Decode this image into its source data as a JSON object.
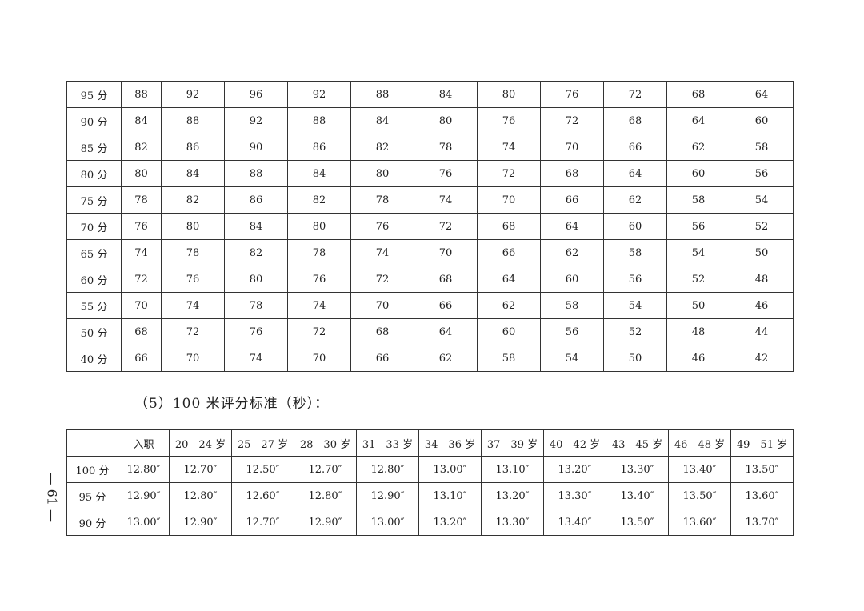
{
  "table1": {
    "rows": [
      [
        "95 分",
        "88",
        "92",
        "96",
        "92",
        "88",
        "84",
        "80",
        "76",
        "72",
        "68",
        "64"
      ],
      [
        "90 分",
        "84",
        "88",
        "92",
        "88",
        "84",
        "80",
        "76",
        "72",
        "68",
        "64",
        "60"
      ],
      [
        "85 分",
        "82",
        "86",
        "90",
        "86",
        "82",
        "78",
        "74",
        "70",
        "66",
        "62",
        "58"
      ],
      [
        "80 分",
        "80",
        "84",
        "88",
        "84",
        "80",
        "76",
        "72",
        "68",
        "64",
        "60",
        "56"
      ],
      [
        "75 分",
        "78",
        "82",
        "86",
        "82",
        "78",
        "74",
        "70",
        "66",
        "62",
        "58",
        "54"
      ],
      [
        "70 分",
        "76",
        "80",
        "84",
        "80",
        "76",
        "72",
        "68",
        "64",
        "60",
        "56",
        "52"
      ],
      [
        "65 分",
        "74",
        "78",
        "82",
        "78",
        "74",
        "70",
        "66",
        "62",
        "58",
        "54",
        "50"
      ],
      [
        "60 分",
        "72",
        "76",
        "80",
        "76",
        "72",
        "68",
        "64",
        "60",
        "56",
        "52",
        "48"
      ],
      [
        "55 分",
        "70",
        "74",
        "78",
        "74",
        "70",
        "66",
        "62",
        "58",
        "54",
        "50",
        "46"
      ],
      [
        "50 分",
        "68",
        "72",
        "76",
        "72",
        "68",
        "64",
        "60",
        "56",
        "52",
        "48",
        "44"
      ],
      [
        "40 分",
        "66",
        "70",
        "74",
        "70",
        "66",
        "62",
        "58",
        "54",
        "50",
        "46",
        "42"
      ]
    ]
  },
  "heading": "（5）100 米评分标准（秒）：",
  "table2": {
    "headers": [
      "",
      "入职",
      "20—24 岁",
      "25—27 岁",
      "28—30 岁",
      "31—33 岁",
      "34—36 岁",
      "37—39 岁",
      "40—42 岁",
      "43—45 岁",
      "46—48 岁",
      "49—51 岁"
    ],
    "rows": [
      [
        "100 分",
        "12.80″",
        "12.70″",
        "12.50″",
        "12.70″",
        "12.80″",
        "13.00″",
        "13.10″",
        "13.20″",
        "13.30″",
        "13.40″",
        "13.50″"
      ],
      [
        "95 分",
        "12.90″",
        "12.80″",
        "12.60″",
        "12.80″",
        "12.90″",
        "13.10″",
        "13.20″",
        "13.30″",
        "13.40″",
        "13.50″",
        "13.60″"
      ],
      [
        "90 分",
        "13.00″",
        "12.90″",
        "12.70″",
        "12.90″",
        "13.00″",
        "13.20″",
        "13.30″",
        "13.40″",
        "13.50″",
        "13.60″",
        "13.70″"
      ]
    ]
  },
  "page_number": "— 61 —"
}
